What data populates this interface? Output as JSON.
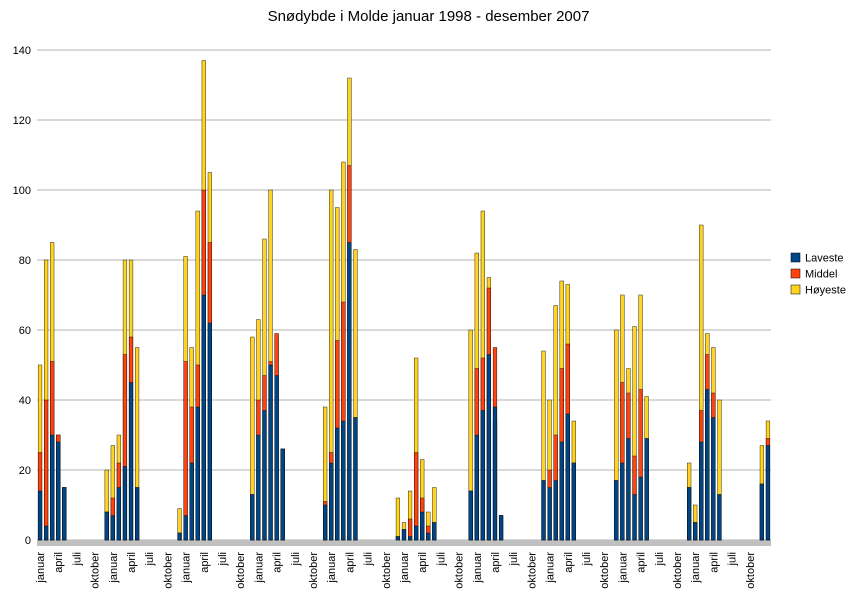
{
  "chart_data": {
    "type": "bar",
    "title": "Snødybde i Molde januar 1998 - desember 2007",
    "xlabel": "",
    "ylabel": "",
    "ylim": [
      0,
      140
    ],
    "yticks": [
      0,
      20,
      40,
      60,
      80,
      100,
      120,
      140
    ],
    "grid": true,
    "legend_position": "right",
    "month_labels": [
      "januar",
      "april",
      "juli",
      "oktober"
    ],
    "x_tick_labels": [
      "januar",
      "april",
      "juli",
      "oktober",
      "januar",
      "april",
      "juli",
      "oktober",
      "januar",
      "april",
      "juli",
      "oktober",
      "januar",
      "april",
      "juli",
      "oktober",
      "januar",
      "april",
      "juli",
      "oktober",
      "januar",
      "april",
      "juli",
      "oktober",
      "januar",
      "april",
      "juli",
      "oktober",
      "januar",
      "april",
      "juli",
      "oktober",
      "januar",
      "april",
      "juli",
      "oktober",
      "januar",
      "april",
      "juli",
      "oktober"
    ],
    "series": [
      {
        "name": "Laveste",
        "color": "#004586",
        "values": [
          14,
          4,
          30,
          28,
          15,
          0,
          0,
          0,
          0,
          0,
          0,
          8,
          7,
          15,
          21,
          45,
          15,
          0,
          0,
          0,
          0,
          0,
          0,
          2,
          7,
          22,
          38,
          70,
          62,
          0,
          0,
          0,
          0,
          0,
          0,
          13,
          30,
          37,
          50,
          47,
          26,
          0,
          0,
          0,
          0,
          0,
          0,
          10,
          22,
          32,
          34,
          85,
          35,
          0,
          0,
          0,
          0,
          0,
          0,
          1,
          3,
          1,
          4,
          8,
          2,
          5,
          0,
          0,
          0,
          0,
          0,
          14,
          30,
          37,
          53,
          38,
          7,
          0,
          0,
          0,
          0,
          0,
          0,
          17,
          15,
          17,
          28,
          36,
          22,
          0,
          0,
          0,
          0,
          0,
          0,
          17,
          22,
          29,
          13,
          18,
          29,
          0,
          0,
          0,
          0,
          0,
          0,
          15,
          5,
          28,
          43,
          35,
          13,
          0,
          0,
          0,
          0,
          0,
          0,
          16,
          27
        ]
      },
      {
        "name": "Middel",
        "color": "#ff420e",
        "values": [
          25,
          40,
          51,
          30,
          15,
          0,
          0,
          0,
          0,
          0,
          0,
          8,
          12,
          22,
          53,
          58,
          15,
          0,
          0,
          0,
          0,
          0,
          0,
          2,
          51,
          38,
          50,
          100,
          85,
          0,
          0,
          0,
          0,
          0,
          0,
          13,
          40,
          47,
          51,
          59,
          26,
          0,
          0,
          0,
          0,
          0,
          0,
          11,
          25,
          57,
          68,
          107,
          35,
          0,
          0,
          0,
          0,
          0,
          0,
          1,
          3,
          6,
          25,
          12,
          4,
          5,
          0,
          0,
          0,
          0,
          0,
          14,
          49,
          52,
          72,
          55,
          7,
          0,
          0,
          0,
          0,
          0,
          0,
          17,
          20,
          30,
          49,
          56,
          22,
          0,
          0,
          0,
          0,
          0,
          0,
          17,
          45,
          42,
          24,
          43,
          29,
          0,
          0,
          0,
          0,
          0,
          0,
          15,
          5,
          37,
          53,
          42,
          13,
          0,
          0,
          0,
          0,
          0,
          0,
          16,
          29
        ]
      },
      {
        "name": "Høyeste",
        "color": "#ffd320",
        "values": [
          50,
          80,
          85,
          30,
          15,
          0,
          0,
          0,
          0,
          0,
          0,
          20,
          27,
          30,
          80,
          80,
          55,
          0,
          0,
          0,
          0,
          0,
          0,
          9,
          81,
          55,
          94,
          137,
          105,
          0,
          0,
          0,
          0,
          0,
          0,
          58,
          63,
          86,
          100,
          58,
          26,
          0,
          0,
          0,
          0,
          0,
          0,
          38,
          100,
          95,
          108,
          132,
          83,
          0,
          0,
          0,
          0,
          0,
          0,
          12,
          5,
          14,
          52,
          23,
          8,
          15,
          0,
          0,
          0,
          0,
          0,
          60,
          82,
          94,
          75,
          34,
          7,
          0,
          0,
          0,
          0,
          0,
          0,
          54,
          40,
          67,
          74,
          73,
          34,
          0,
          0,
          0,
          0,
          0,
          0,
          60,
          70,
          49,
          61,
          70,
          41,
          0,
          0,
          0,
          0,
          0,
          0,
          22,
          10,
          90,
          59,
          55,
          40,
          0,
          0,
          0,
          0,
          0,
          0,
          27,
          34
        ]
      }
    ]
  }
}
